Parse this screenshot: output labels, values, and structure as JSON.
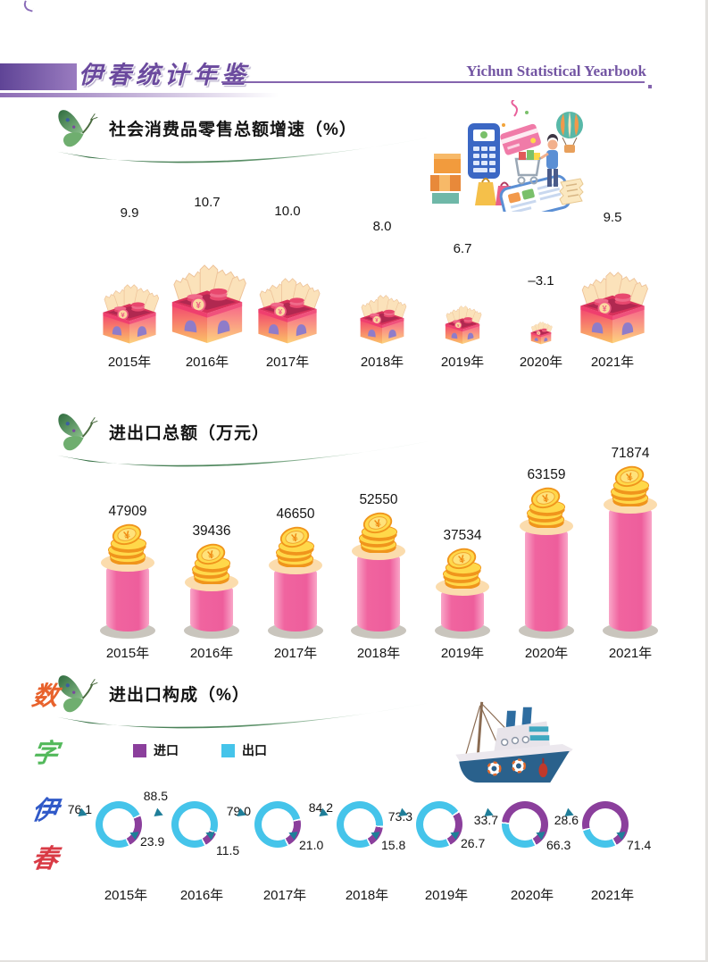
{
  "header": {
    "title_cn": "伊春统计年鉴",
    "title_en": "Yichun Statistical Yearbook"
  },
  "side_label": {
    "text": "数字伊春",
    "chars": [
      {
        "text": "数",
        "color": "#e8622c"
      },
      {
        "text": "字",
        "color": "#53b95b"
      },
      {
        "text": "伊",
        "color": "#3059c8"
      },
      {
        "text": "春",
        "color": "#d93a45"
      }
    ]
  },
  "chart_data": [
    {
      "type": "bar",
      "style": "gift-box pictogram, box size scales with value",
      "title": "社会消费品零售总额增速（%）",
      "categories": [
        "2015年",
        "2016年",
        "2017年",
        "2018年",
        "2019年",
        "2020年",
        "2021年"
      ],
      "values": [
        9.9,
        10.7,
        10.0,
        8.0,
        6.7,
        -3.1,
        9.5
      ],
      "ylabel": "%",
      "grid": false,
      "legend_position": "none"
    },
    {
      "type": "bar",
      "style": "pink cylinder bars with gold coin stacks on top",
      "title": "进出口总额（万元）",
      "categories": [
        "2015年",
        "2016年",
        "2017年",
        "2018年",
        "2019年",
        "2020年",
        "2021年"
      ],
      "values": [
        47909,
        39436,
        46650,
        52550,
        37534,
        63159,
        71874
      ],
      "ylabel": "万元",
      "grid": false,
      "legend_position": "none"
    },
    {
      "type": "pie",
      "style": "donut per year, purple=import, cyan=export",
      "title": "进出口构成（%）",
      "categories": [
        "2015年",
        "2016年",
        "2017年",
        "2018年",
        "2019年",
        "2020年",
        "2021年"
      ],
      "series": [
        {
          "name": "进口",
          "color": "#8b3f9c",
          "values": [
            23.9,
            11.5,
            21.0,
            15.8,
            26.7,
            66.3,
            71.4
          ]
        },
        {
          "name": "出口",
          "color": "#45c4ea",
          "values": [
            76.1,
            88.5,
            79.0,
            84.2,
            73.3,
            33.7,
            28.6
          ]
        }
      ],
      "legend_position": "top-left"
    }
  ],
  "colors": {
    "accent_purple": "#7a58a8",
    "bar_pink": "#ee5e9c",
    "bar_rim_peach": "#fbdcad",
    "bar_shadow_gray": "#c9c5bd",
    "coin_yellow": "#ffd84a",
    "coin_orange": "#f0951c",
    "import_purple": "#8b3f9c",
    "export_cyan": "#45c4ea",
    "arrow_teal": "#1f7e99"
  }
}
